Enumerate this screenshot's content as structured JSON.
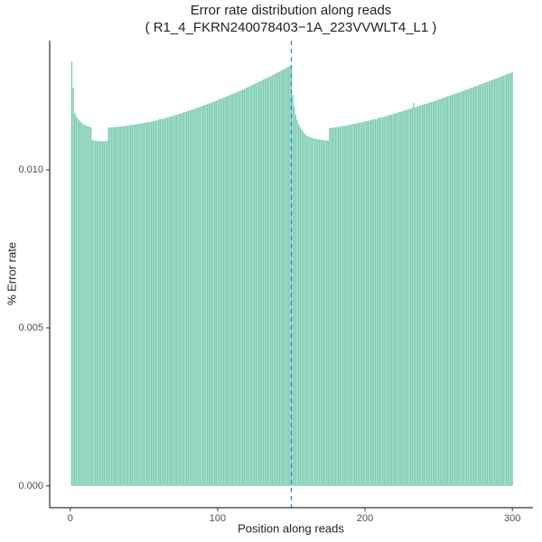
{
  "chart_data": {
    "type": "bar",
    "title": "Error rate distribution along reads",
    "subtitle": "( R1_4_FKRN240078403−1A_223VVWLT4_L1 )",
    "x_label": "Position along reads",
    "y_label": "% Error rate",
    "color": "#7fcdb3",
    "vline": {
      "value": 150,
      "color": "#3a86c0"
    },
    "xlim": [
      -14,
      314
    ],
    "xticks": [
      0,
      100,
      200,
      300
    ],
    "ylim": [
      -0.00069,
      0.01409
    ],
    "yticks": [
      {
        "value": 0,
        "label": "0.000"
      },
      {
        "value": 0.005,
        "label": "0.005"
      },
      {
        "value": 0.01,
        "label": "0.010"
      }
    ],
    "grid": false,
    "x": [
      1,
      2,
      3,
      4,
      5,
      6,
      7,
      8,
      9,
      10,
      11,
      12,
      13,
      14,
      15,
      16,
      17,
      18,
      19,
      20,
      21,
      22,
      23,
      24,
      25,
      26,
      27,
      28,
      29,
      30,
      31,
      32,
      33,
      34,
      35,
      36,
      37,
      38,
      39,
      40,
      41,
      42,
      43,
      44,
      45,
      46,
      47,
      48,
      49,
      50,
      51,
      52,
      53,
      54,
      55,
      56,
      57,
      58,
      59,
      60,
      61,
      62,
      63,
      64,
      65,
      66,
      67,
      68,
      69,
      70,
      71,
      72,
      73,
      74,
      75,
      76,
      77,
      78,
      79,
      80,
      81,
      82,
      83,
      84,
      85,
      86,
      87,
      88,
      89,
      90,
      91,
      92,
      93,
      94,
      95,
      96,
      97,
      98,
      99,
      100,
      101,
      102,
      103,
      104,
      105,
      106,
      107,
      108,
      109,
      110,
      111,
      112,
      113,
      114,
      115,
      116,
      117,
      118,
      119,
      120,
      121,
      122,
      123,
      124,
      125,
      126,
      127,
      128,
      129,
      130,
      131,
      132,
      133,
      134,
      135,
      136,
      137,
      138,
      139,
      140,
      141,
      142,
      143,
      144,
      145,
      146,
      147,
      148,
      149,
      150,
      151,
      152,
      153,
      154,
      155,
      156,
      157,
      158,
      159,
      160,
      161,
      162,
      163,
      164,
      165,
      166,
      167,
      168,
      169,
      170,
      171,
      172,
      173,
      174,
      175,
      176,
      177,
      178,
      179,
      180,
      181,
      182,
      183,
      184,
      185,
      186,
      187,
      188,
      189,
      190,
      191,
      192,
      193,
      194,
      195,
      196,
      197,
      198,
      199,
      200,
      201,
      202,
      203,
      204,
      205,
      206,
      207,
      208,
      209,
      210,
      211,
      212,
      213,
      214,
      215,
      216,
      217,
      218,
      219,
      220,
      221,
      222,
      223,
      224,
      225,
      226,
      227,
      228,
      229,
      230,
      231,
      232,
      233,
      234,
      235,
      236,
      237,
      238,
      239,
      240,
      241,
      242,
      243,
      244,
      245,
      246,
      247,
      248,
      249,
      250,
      251,
      252,
      253,
      254,
      255,
      256,
      257,
      258,
      259,
      260,
      261,
      262,
      263,
      264,
      265,
      266,
      267,
      268,
      269,
      270,
      271,
      272,
      273,
      274,
      275,
      276,
      277,
      278,
      279,
      280,
      281,
      282,
      283,
      284,
      285,
      286,
      287,
      288,
      289,
      290,
      291,
      292,
      293,
      294,
      295,
      296,
      297,
      298,
      299,
      300
    ],
    "values": [
      0.01343,
      0.0126,
      0.0118,
      0.0117,
      0.01163,
      0.01157,
      0.01152,
      0.01148,
      0.01145,
      0.01142,
      0.0114,
      0.01138,
      0.01136,
      0.01135,
      0.01095,
      0.01093,
      0.01092,
      0.01091,
      0.0109,
      0.01091,
      0.01092,
      0.01091,
      0.0109,
      0.01091,
      0.01092,
      0.01134,
      0.01134,
      0.01135,
      0.01135,
      0.01136,
      0.01136,
      0.01136,
      0.01137,
      0.01137,
      0.01138,
      0.01138,
      0.01139,
      0.0114,
      0.0114,
      0.01141,
      0.01142,
      0.01142,
      0.01143,
      0.01144,
      0.01144,
      0.01145,
      0.01146,
      0.01147,
      0.01148,
      0.01149,
      0.0115,
      0.0115,
      0.01151,
      0.01152,
      0.01153,
      0.01154,
      0.01155,
      0.01156,
      0.01157,
      0.01159,
      0.0116,
      0.01161,
      0.01162,
      0.01163,
      0.01165,
      0.01166,
      0.01167,
      0.01169,
      0.0117,
      0.01171,
      0.01173,
      0.01174,
      0.01176,
      0.01177,
      0.01178,
      0.0118,
      0.01182,
      0.01183,
      0.01185,
      0.01186,
      0.01188,
      0.0119,
      0.01191,
      0.01193,
      0.01194,
      0.01196,
      0.01198,
      0.01199,
      0.01201,
      0.01203,
      0.01205,
      0.01206,
      0.01208,
      0.0121,
      0.01211,
      0.01213,
      0.01215,
      0.01217,
      0.01219,
      0.01221,
      0.01223,
      0.01225,
      0.01227,
      0.01228,
      0.0123,
      0.01232,
      0.01234,
      0.01236,
      0.01238,
      0.0124,
      0.01242,
      0.01244,
      0.01246,
      0.01248,
      0.0125,
      0.01252,
      0.01254,
      0.01256,
      0.01259,
      0.01261,
      0.01263,
      0.01265,
      0.01267,
      0.0127,
      0.01272,
      0.01274,
      0.01276,
      0.01279,
      0.01281,
      0.01283,
      0.01286,
      0.01288,
      0.0129,
      0.01292,
      0.01295,
      0.01297,
      0.01299,
      0.01302,
      0.01304,
      0.01307,
      0.01309,
      0.01311,
      0.01314,
      0.01316,
      0.01319,
      0.01321,
      0.01324,
      0.01326,
      0.01329,
      0.01331,
      0.01237,
      0.012,
      0.01175,
      0.01158,
      0.01145,
      0.01135,
      0.01128,
      0.0112,
      0.01115,
      0.0111,
      0.01107,
      0.01105,
      0.01103,
      0.01101,
      0.011,
      0.01099,
      0.01098,
      0.01097,
      0.01096,
      0.01095,
      0.01095,
      0.01094,
      0.01093,
      0.01093,
      0.01092,
      0.01132,
      0.01133,
      0.01133,
      0.01134,
      0.01135,
      0.01136,
      0.01136,
      0.01137,
      0.01138,
      0.01139,
      0.01139,
      0.0114,
      0.01141,
      0.01142,
      0.01143,
      0.01144,
      0.01145,
      0.01146,
      0.01147,
      0.01148,
      0.01149,
      0.0115,
      0.01151,
      0.01152,
      0.01153,
      0.01154,
      0.01155,
      0.01157,
      0.01158,
      0.01159,
      0.0116,
      0.01161,
      0.01162,
      0.01164,
      0.01165,
      0.01166,
      0.01167,
      0.01168,
      0.0117,
      0.01171,
      0.01173,
      0.01174,
      0.01175,
      0.01177,
      0.01178,
      0.0118,
      0.01181,
      0.01183,
      0.01184,
      0.01185,
      0.01187,
      0.01188,
      0.0119,
      0.01191,
      0.01193,
      0.01194,
      0.01196,
      0.01212,
      0.01198,
      0.012,
      0.01201,
      0.01203,
      0.01204,
      0.01206,
      0.01207,
      0.01209,
      0.0121,
      0.01212,
      0.01213,
      0.01215,
      0.01216,
      0.01218,
      0.01219,
      0.01221,
      0.01223,
      0.01224,
      0.01226,
      0.01228,
      0.01229,
      0.01231,
      0.01233,
      0.01234,
      0.01236,
      0.01238,
      0.01239,
      0.01241,
      0.01243,
      0.01244,
      0.01246,
      0.01248,
      0.01249,
      0.01251,
      0.01253,
      0.01254,
      0.01256,
      0.01258,
      0.01259,
      0.01261,
      0.01263,
      0.01265,
      0.01266,
      0.01268,
      0.0127,
      0.01272,
      0.01273,
      0.01275,
      0.01277,
      0.01279,
      0.0128,
      0.01282,
      0.01284,
      0.01286,
      0.01288,
      0.01289,
      0.01291,
      0.01293,
      0.01295,
      0.01297,
      0.01298,
      0.013,
      0.01302,
      0.01304,
      0.01305,
      0.01307,
      0.01309
    ]
  }
}
